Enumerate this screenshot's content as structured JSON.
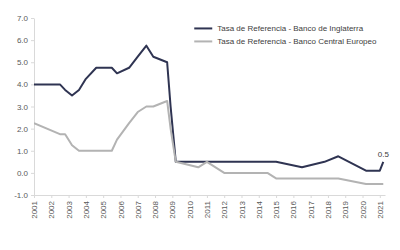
{
  "chart_data": {
    "type": "line",
    "x": [
      2001,
      2002.5,
      2002.8,
      2003.2,
      2003.6,
      2004.0,
      2004.6,
      2005.5,
      2005.8,
      2006.5,
      2007.0,
      2007.5,
      2007.9,
      2008.7,
      2008.9,
      2009.2,
      2010.5,
      2011.0,
      2011.5,
      2012.0,
      2013.0,
      2014.5,
      2015.0,
      2016.5,
      2017.8,
      2018.6,
      2020.2,
      2021.0,
      2021.2
    ],
    "series": [
      {
        "name": "Tasa de Referencia - Banco de Inglaterra",
        "color": "#2f3452",
        "values": [
          4.0,
          4.0,
          3.75,
          3.5,
          3.75,
          4.25,
          4.75,
          4.75,
          4.5,
          4.75,
          5.25,
          5.75,
          5.25,
          5.0,
          3.0,
          0.5,
          0.5,
          0.5,
          0.5,
          0.5,
          0.5,
          0.5,
          0.5,
          0.25,
          0.5,
          0.75,
          0.1,
          0.1,
          0.5
        ]
      },
      {
        "name": "Tasa de Referencia - Banco Central Europeo",
        "color": "#b3b3b3",
        "values": [
          2.25,
          1.75,
          1.75,
          1.25,
          1.0,
          1.0,
          1.0,
          1.0,
          1.5,
          2.25,
          2.75,
          3.0,
          3.0,
          3.25,
          2.0,
          0.5,
          0.25,
          0.5,
          0.25,
          0.0,
          0.0,
          0.0,
          -0.25,
          -0.25,
          -0.25,
          -0.25,
          -0.5,
          -0.5,
          -0.5
        ]
      }
    ],
    "xlim": [
      2001,
      2021.3
    ],
    "xticks": [
      2001,
      2002,
      2003,
      2004,
      2005,
      2006,
      2007,
      2008,
      2009,
      2010,
      2011,
      2012,
      2013,
      2014,
      2015,
      2016,
      2017,
      2018,
      2019,
      2020,
      2021
    ],
    "ylim": [
      -1,
      7
    ],
    "yticks": [
      {
        "value": -1,
        "label": "-1.0"
      },
      {
        "value": 0,
        "label": "0.0"
      },
      {
        "value": 1,
        "label": "1.0"
      },
      {
        "value": 2,
        "label": "2.0"
      },
      {
        "value": 3,
        "label": "3.0"
      },
      {
        "value": 4,
        "label": "4.0"
      },
      {
        "value": 5,
        "label": "5.0"
      },
      {
        "value": 6,
        "label": "6.0"
      },
      {
        "value": 7,
        "label": "7.0"
      }
    ],
    "annotations": [
      {
        "text": "0.5",
        "x": 2021.2,
        "y": 0.5
      }
    ],
    "grid": false,
    "legend": "top-right"
  }
}
